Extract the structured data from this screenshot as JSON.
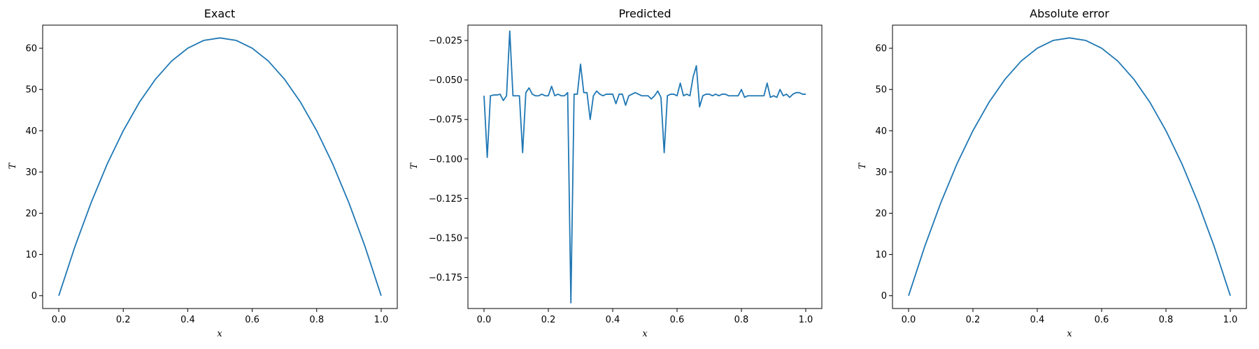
{
  "chart_data": [
    {
      "type": "line",
      "title": "Exact",
      "xlabel": "x",
      "ylabel": "T",
      "xlim": [
        -0.05,
        1.05
      ],
      "ylim": [
        -3.1,
        65.6
      ],
      "xticks": [
        0.0,
        0.2,
        0.4,
        0.6,
        0.8,
        1.0
      ],
      "xtick_labels": [
        "0.0",
        "0.2",
        "0.4",
        "0.6",
        "0.8",
        "1.0"
      ],
      "yticks": [
        0,
        10,
        20,
        30,
        40,
        50,
        60
      ],
      "ytick_labels": [
        "0",
        "10",
        "20",
        "30",
        "40",
        "50",
        "60"
      ],
      "grid": false,
      "series": [
        {
          "color": "#1f77b4",
          "x": [
            0.0,
            0.05,
            0.1,
            0.15,
            0.2,
            0.25,
            0.3,
            0.35,
            0.4,
            0.45,
            0.5,
            0.55,
            0.6,
            0.65,
            0.7,
            0.75,
            0.8,
            0.85,
            0.9,
            0.95,
            1.0
          ],
          "y": [
            0.0,
            11.9,
            22.5,
            31.9,
            40.0,
            46.9,
            52.5,
            56.9,
            60.0,
            61.9,
            62.5,
            61.9,
            60.0,
            56.9,
            52.5,
            46.9,
            40.0,
            31.9,
            22.5,
            11.9,
            0.0
          ]
        }
      ]
    },
    {
      "type": "line",
      "title": "Predicted",
      "xlabel": "x",
      "ylabel": "T",
      "xlim": [
        -0.05,
        1.05
      ],
      "ylim": [
        -0.1946,
        -0.0153
      ],
      "xticks": [
        0.0,
        0.2,
        0.4,
        0.6,
        0.8,
        1.0
      ],
      "xtick_labels": [
        "0.0",
        "0.2",
        "0.4",
        "0.6",
        "0.8",
        "1.0"
      ],
      "yticks": [
        -0.175,
        -0.15,
        -0.125,
        -0.1,
        -0.075,
        -0.05,
        -0.025
      ],
      "ytick_labels": [
        "−0.175",
        "−0.150",
        "−0.125",
        "−0.100",
        "−0.075",
        "−0.050",
        "−0.025"
      ],
      "grid": false,
      "series": [
        {
          "color": "#1f77b4",
          "x": [
            0.0,
            0.01,
            0.02,
            0.03,
            0.04,
            0.05,
            0.06,
            0.07,
            0.08,
            0.09,
            0.1,
            0.11,
            0.12,
            0.13,
            0.14,
            0.15,
            0.16,
            0.17,
            0.18,
            0.19,
            0.2,
            0.21,
            0.22,
            0.23,
            0.24,
            0.25,
            0.26,
            0.27,
            0.28,
            0.29,
            0.3,
            0.31,
            0.32,
            0.33,
            0.34,
            0.35,
            0.36,
            0.37,
            0.38,
            0.39,
            0.4,
            0.41,
            0.42,
            0.43,
            0.44,
            0.45,
            0.46,
            0.47,
            0.48,
            0.49,
            0.5,
            0.51,
            0.52,
            0.53,
            0.54,
            0.55,
            0.56,
            0.57,
            0.58,
            0.59,
            0.6,
            0.61,
            0.62,
            0.63,
            0.64,
            0.65,
            0.66,
            0.67,
            0.68,
            0.69,
            0.7,
            0.71,
            0.72,
            0.73,
            0.74,
            0.75,
            0.76,
            0.77,
            0.78,
            0.79,
            0.8,
            0.81,
            0.82,
            0.83,
            0.84,
            0.85,
            0.86,
            0.87,
            0.88,
            0.89,
            0.9,
            0.91,
            0.92,
            0.93,
            0.94,
            0.95,
            0.96,
            0.97,
            0.98,
            0.99,
            1.0
          ],
          "y": [
            -0.06,
            -0.099,
            -0.06,
            -0.0595,
            -0.0595,
            -0.059,
            -0.063,
            -0.06,
            -0.019,
            -0.06,
            -0.06,
            -0.06,
            -0.096,
            -0.058,
            -0.055,
            -0.059,
            -0.06,
            -0.06,
            -0.059,
            -0.06,
            -0.06,
            -0.054,
            -0.06,
            -0.059,
            -0.06,
            -0.06,
            -0.058,
            -0.191,
            -0.059,
            -0.059,
            -0.04,
            -0.058,
            -0.058,
            -0.075,
            -0.06,
            -0.057,
            -0.059,
            -0.06,
            -0.059,
            -0.059,
            -0.059,
            -0.065,
            -0.059,
            -0.059,
            -0.066,
            -0.06,
            -0.059,
            -0.058,
            -0.059,
            -0.06,
            -0.06,
            -0.06,
            -0.062,
            -0.06,
            -0.057,
            -0.061,
            -0.096,
            -0.06,
            -0.059,
            -0.059,
            -0.06,
            -0.052,
            -0.06,
            -0.059,
            -0.06,
            -0.048,
            -0.041,
            -0.067,
            -0.06,
            -0.059,
            -0.059,
            -0.06,
            -0.059,
            -0.06,
            -0.059,
            -0.059,
            -0.06,
            -0.06,
            -0.06,
            -0.06,
            -0.056,
            -0.061,
            -0.06,
            -0.06,
            -0.06,
            -0.06,
            -0.06,
            -0.06,
            -0.052,
            -0.061,
            -0.06,
            -0.061,
            -0.056,
            -0.06,
            -0.059,
            -0.061,
            -0.059,
            -0.058,
            -0.058,
            -0.059,
            -0.059
          ]
        }
      ]
    },
    {
      "type": "line",
      "title": "Absolute error",
      "xlabel": "x",
      "ylabel": "T",
      "xlim": [
        -0.05,
        1.05
      ],
      "ylim": [
        -3.1,
        65.6
      ],
      "xticks": [
        0.0,
        0.2,
        0.4,
        0.6,
        0.8,
        1.0
      ],
      "xtick_labels": [
        "0.0",
        "0.2",
        "0.4",
        "0.6",
        "0.8",
        "1.0"
      ],
      "yticks": [
        0,
        10,
        20,
        30,
        40,
        50,
        60
      ],
      "ytick_labels": [
        "0",
        "10",
        "20",
        "30",
        "40",
        "50",
        "60"
      ],
      "grid": false,
      "series": [
        {
          "color": "#1f77b4",
          "x": [
            0.0,
            0.05,
            0.1,
            0.15,
            0.2,
            0.25,
            0.3,
            0.35,
            0.4,
            0.45,
            0.5,
            0.55,
            0.6,
            0.65,
            0.7,
            0.75,
            0.8,
            0.85,
            0.9,
            0.95,
            1.0
          ],
          "y": [
            0.0,
            11.9,
            22.5,
            31.9,
            40.0,
            46.9,
            52.5,
            56.9,
            60.0,
            61.9,
            62.5,
            61.9,
            60.0,
            56.9,
            52.5,
            46.9,
            40.0,
            31.9,
            22.5,
            11.9,
            0.0
          ]
        }
      ]
    }
  ]
}
